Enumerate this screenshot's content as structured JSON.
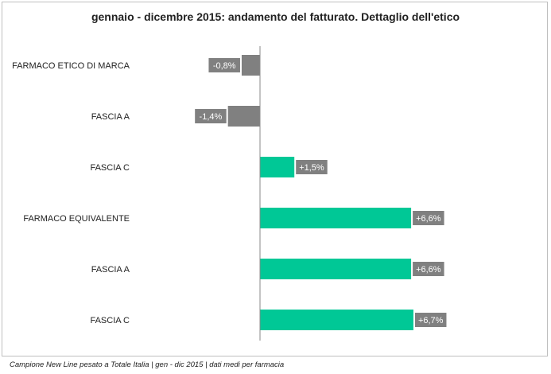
{
  "chart_data": {
    "type": "bar",
    "orientation": "horizontal",
    "title": "gennaio - dicembre 2015: andamento del fatturato. Dettaglio dell'etico",
    "categories": [
      "FARMACO ETICO DI MARCA",
      "FASCIA A",
      "FASCIA C",
      "FARMACO EQUIVALENTE",
      "FASCIA A",
      "FASCIA C"
    ],
    "values": [
      -0.8,
      -1.4,
      1.5,
      6.6,
      6.6,
      6.7
    ],
    "data_labels": [
      "-0,8%",
      "-1,4%",
      "+1,5%",
      "+6,6%",
      "+6,6%",
      "+6,7%"
    ],
    "xlim": [
      -1.4,
      6.7
    ],
    "grid": false,
    "colors": {
      "negative": "#808080",
      "positive": "#00c896",
      "axis": "#888888",
      "label_bg": "#808080"
    }
  },
  "footnote": "Campione New Line pesato a Totale Italia | gen - dic 2015 | dati medi per farmacia"
}
